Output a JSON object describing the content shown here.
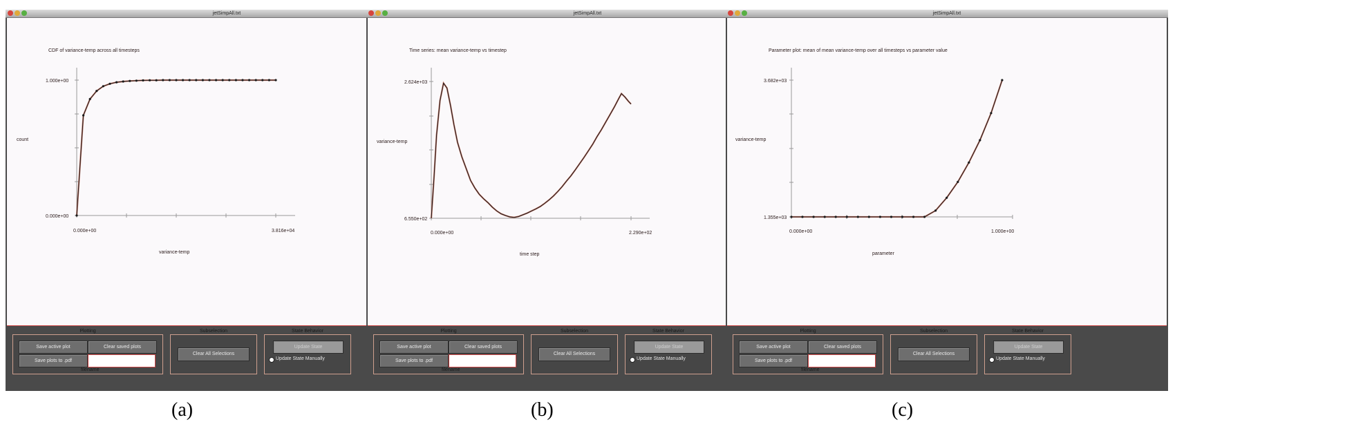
{
  "captions": [
    "(a)",
    "(b)",
    "(c)"
  ],
  "windows": [
    {
      "title": "jetSimpAll.txt",
      "plot": {
        "title": "CDF of variance-temp across all timesteps",
        "ylabel": "count",
        "xlabel": "variance-temp",
        "ymax_label": "1.000e+00",
        "ymin_label": "0.000e+00",
        "xmin_label": "0.000e+00",
        "xmax_label": "3.816e+04"
      },
      "chart_data": {
        "type": "line",
        "title": "CDF of variance-temp across all timesteps",
        "xlabel": "variance-temp",
        "ylabel": "count",
        "xlim": [
          0,
          38160
        ],
        "ylim": [
          0,
          1
        ],
        "x": [
          0,
          1272,
          2544,
          3816,
          5088,
          6360,
          7632,
          8904,
          10176,
          11448,
          12720,
          13992,
          15264,
          16536,
          17808,
          19080,
          20352,
          21624,
          22896,
          24168,
          25440,
          26712,
          27984,
          29256,
          30528,
          31800,
          33072,
          34344,
          35616,
          36888,
          38160
        ],
        "values": [
          0,
          0.74,
          0.86,
          0.92,
          0.955,
          0.973,
          0.984,
          0.99,
          0.994,
          0.996,
          0.998,
          0.999,
          0.999,
          1,
          1,
          1,
          1,
          1,
          1,
          1,
          1,
          1,
          1,
          1,
          1,
          1,
          1,
          1,
          1,
          1,
          1
        ],
        "grid": false
      },
      "controls": {
        "plotting_title": "Plotting",
        "save_active": "Save active plot",
        "clear_saved": "Clear saved plots",
        "save_pdf": "Save plots to .pdf",
        "filename_label": "filename",
        "filename_value": "",
        "subselection_title": "Subselection",
        "clear_selections": "Clear All Selections",
        "state_title": "State Behavior",
        "update_state": "Update State",
        "update_manually": "Update State Manually"
      }
    },
    {
      "title": "jetSimpAll.txt",
      "plot": {
        "title": "Time series: mean variance-temp vs timestep",
        "ylabel": "variance-temp",
        "xlabel": "time step",
        "ymax_label": "2.624e+03",
        "ymin_label": "6.550e+02",
        "xmin_label": "0.000e+00",
        "xmax_label": "2.290e+02"
      },
      "chart_data": {
        "type": "line",
        "title": "Time series: mean variance-temp vs timestep",
        "xlabel": "time step",
        "ylabel": "variance-temp",
        "xlim": [
          0,
          229
        ],
        "ylim": [
          655,
          2624
        ],
        "x": [
          0,
          3,
          6,
          10,
          14,
          18,
          22,
          26,
          30,
          35,
          40,
          45,
          50,
          55,
          60,
          65,
          70,
          75,
          80,
          85,
          90,
          95,
          100,
          105,
          110,
          115,
          120,
          125,
          130,
          135,
          140,
          145,
          150,
          155,
          160,
          165,
          170,
          175,
          180,
          185,
          190,
          195,
          200,
          205,
          210,
          215,
          218,
          222,
          226,
          229
        ],
        "values": [
          655,
          1220,
          1850,
          2350,
          2600,
          2530,
          2280,
          2000,
          1750,
          1540,
          1370,
          1200,
          1090,
          1000,
          935,
          880,
          815,
          760,
          720,
          695,
          675,
          668,
          680,
          705,
          730,
          760,
          790,
          825,
          870,
          920,
          975,
          1040,
          1110,
          1190,
          1265,
          1350,
          1440,
          1530,
          1625,
          1720,
          1830,
          1930,
          2040,
          2150,
          2260,
          2380,
          2450,
          2400,
          2340,
          2300
        ],
        "grid": false
      },
      "controls": {
        "plotting_title": "Plotting",
        "save_active": "Save active plot",
        "clear_saved": "Clear saved plots",
        "save_pdf": "Save plots to .pdf",
        "filename_label": "filename",
        "filename_value": "",
        "subselection_title": "Subselection",
        "clear_selections": "Clear All Selections",
        "state_title": "State Behavior",
        "update_state": "Update State",
        "update_manually": "Update State Manually"
      }
    },
    {
      "title": "jetSimpAll.txt",
      "plot": {
        "title": "Parameter plot: mean of mean variance-temp over all timesteps vs parameter value",
        "ylabel": "variance-temp",
        "xlabel": "parameter",
        "ymax_label": "3.682e+03",
        "ymin_label": "1.355e+03",
        "xmin_label": "0.000e+00",
        "xmax_label": "1.000e+00"
      },
      "chart_data": {
        "type": "line",
        "title": "Parameter plot: mean of mean variance-temp over all timesteps vs parameter value",
        "xlabel": "parameter",
        "ylabel": "variance-temp",
        "xlim": [
          0,
          1
        ],
        "ylim": [
          1355,
          3682
        ],
        "x": [
          0,
          0.05,
          0.1,
          0.15,
          0.2,
          0.25,
          0.3,
          0.35,
          0.4,
          0.45,
          0.5,
          0.55,
          0.6,
          0.65,
          0.7,
          0.75,
          0.8,
          0.85,
          0.9,
          0.95
        ],
        "values": [
          1355,
          1355,
          1355,
          1355,
          1355,
          1355,
          1355,
          1355,
          1355,
          1355,
          1355,
          1355,
          1355,
          1462,
          1680,
          1950,
          2280,
          2660,
          3120,
          3682
        ],
        "grid": false
      },
      "controls": {
        "plotting_title": "Plotting",
        "save_active": "Save active plot",
        "clear_saved": "Clear saved plots",
        "save_pdf": "Save plots to .pdf",
        "filename_label": "filename",
        "filename_value": "",
        "subselection_title": "Subselection",
        "clear_selections": "Clear All Selections",
        "state_title": "State Behavior",
        "update_state": "Update State",
        "update_manually": "Update State Manually"
      }
    }
  ]
}
